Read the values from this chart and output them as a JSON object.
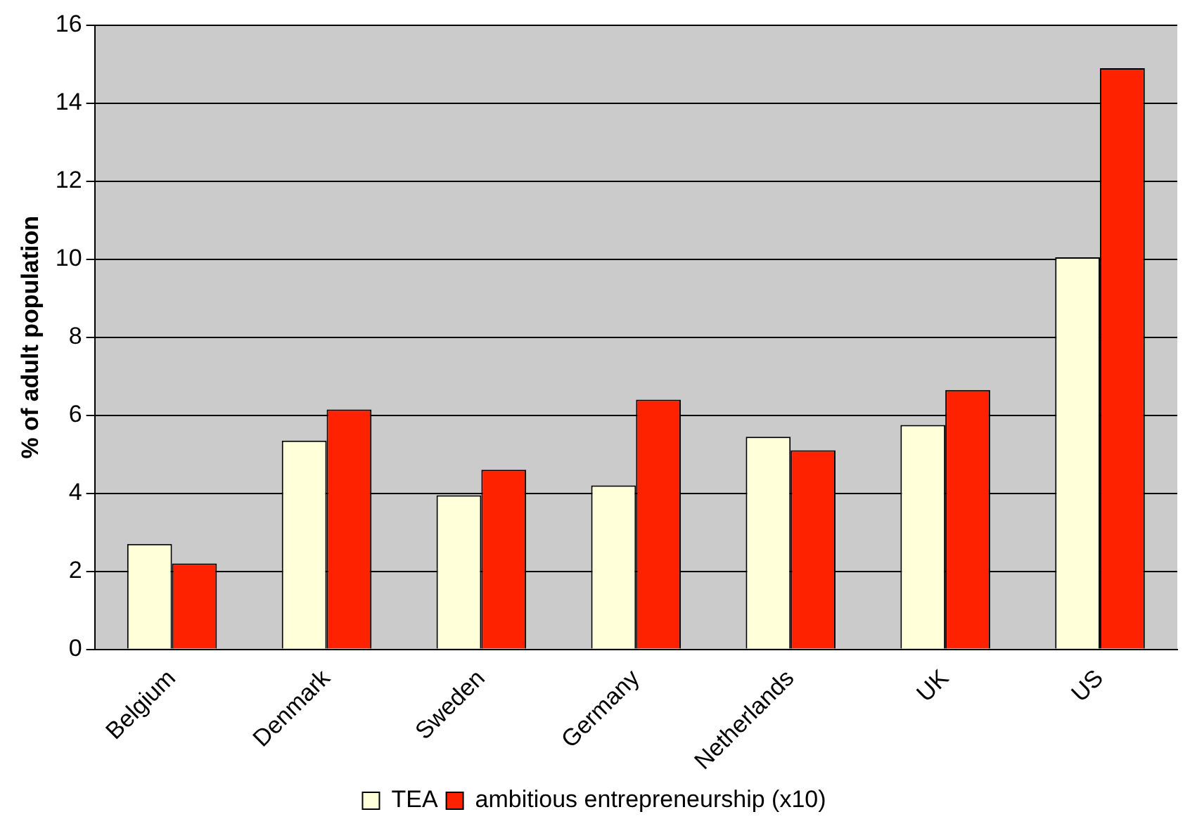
{
  "chart_data": {
    "type": "bar",
    "ylabel": "% of adult population",
    "categories": [
      "Belgium",
      "Denmark",
      "Sweden",
      "Germany",
      "Netherlands",
      "UK",
      "US"
    ],
    "series": [
      {
        "name": "TEA",
        "color": "#ffffd9",
        "values": [
          2.7,
          5.35,
          3.95,
          4.2,
          5.45,
          5.75,
          10.05
        ]
      },
      {
        "name": "ambitious entrepreneurship (x10)",
        "color": "#ff2200",
        "values": [
          2.2,
          6.15,
          4.6,
          6.4,
          5.1,
          6.65,
          14.9
        ]
      }
    ],
    "ylim": [
      0,
      16
    ],
    "yticks": [
      0,
      2,
      4,
      6,
      8,
      10,
      12,
      14,
      16
    ],
    "grid": "y",
    "legend": "bottom"
  }
}
